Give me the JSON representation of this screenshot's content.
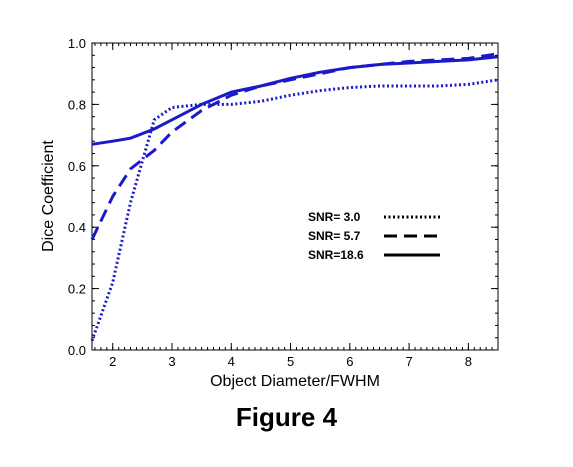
{
  "caption": "Figure 4",
  "chart_data": {
    "type": "line",
    "xlabel": "Object Diameter/FWHM",
    "ylabel": "Dice Coefficient",
    "xlim": [
      1.65,
      8.5
    ],
    "ylim": [
      0.0,
      1.0
    ],
    "x_ticks": [
      2,
      3,
      4,
      5,
      6,
      7,
      8
    ],
    "y_ticks": [
      0.0,
      0.2,
      0.4,
      0.6,
      0.8,
      1.0
    ],
    "y_tick_labels": [
      "0.0",
      "0.2",
      "0.4",
      "0.6",
      "0.8",
      "1.0"
    ],
    "grid": false,
    "legend_position": "center-right",
    "line_color": "#1a1ac8",
    "series": [
      {
        "name": "SNR= 3.0",
        "style": "dotted",
        "x": [
          1.65,
          2.0,
          2.3,
          2.7,
          3.0,
          3.5,
          4.0,
          4.5,
          5.0,
          5.5,
          6.0,
          6.5,
          7.0,
          7.5,
          8.0,
          8.5
        ],
        "y": [
          0.03,
          0.22,
          0.48,
          0.75,
          0.79,
          0.8,
          0.8,
          0.81,
          0.83,
          0.845,
          0.855,
          0.86,
          0.86,
          0.86,
          0.865,
          0.88
        ]
      },
      {
        "name": "SNR= 5.7",
        "style": "dashed",
        "x": [
          1.65,
          2.0,
          2.3,
          2.7,
          3.0,
          3.5,
          4.0,
          4.5,
          5.0,
          5.5,
          6.0,
          6.5,
          7.0,
          7.5,
          8.0,
          8.5
        ],
        "y": [
          0.36,
          0.5,
          0.59,
          0.65,
          0.71,
          0.78,
          0.83,
          0.86,
          0.88,
          0.9,
          0.92,
          0.93,
          0.94,
          0.945,
          0.95,
          0.965
        ]
      },
      {
        "name": "SNR=18.6",
        "style": "solid",
        "x": [
          1.65,
          2.0,
          2.3,
          2.7,
          3.0,
          3.5,
          4.0,
          4.5,
          5.0,
          5.5,
          6.0,
          6.5,
          7.0,
          7.5,
          8.0,
          8.5
        ],
        "y": [
          0.67,
          0.68,
          0.69,
          0.72,
          0.75,
          0.8,
          0.84,
          0.86,
          0.885,
          0.905,
          0.92,
          0.93,
          0.935,
          0.94,
          0.945,
          0.955
        ]
      }
    ]
  }
}
